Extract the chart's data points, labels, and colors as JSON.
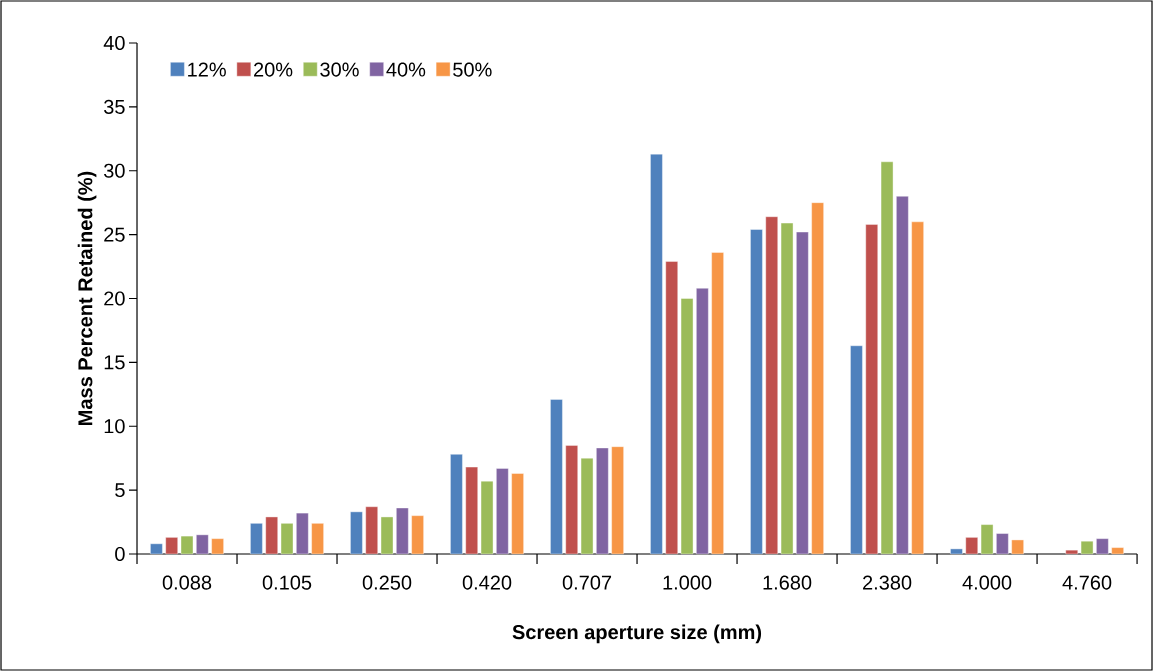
{
  "chart_data": {
    "type": "bar",
    "xlabel": "Screen aperture size (mm)",
    "ylabel": "Mass Percent Retained (%)",
    "categories": [
      "0.088",
      "0.105",
      "0.250",
      "0.420",
      "0.707",
      "1.000",
      "1.680",
      "2.380",
      "4.000",
      "4.760"
    ],
    "series": [
      {
        "name": "12%",
        "color": "#4f81bd",
        "values": [
          0.8,
          2.4,
          3.3,
          7.8,
          12.1,
          31.3,
          25.4,
          16.3,
          0.4,
          null
        ]
      },
      {
        "name": "20%",
        "color": "#c0504d",
        "values": [
          1.3,
          2.9,
          3.7,
          6.8,
          8.5,
          22.9,
          26.4,
          25.8,
          1.3,
          0.3
        ]
      },
      {
        "name": "30%",
        "color": "#9bbb59",
        "values": [
          1.4,
          2.4,
          2.9,
          5.7,
          7.5,
          20.0,
          25.9,
          30.7,
          2.3,
          1.0
        ]
      },
      {
        "name": "40%",
        "color": "#8064a2",
        "values": [
          1.5,
          3.2,
          3.6,
          6.7,
          8.3,
          20.8,
          25.2,
          28.0,
          1.6,
          1.2
        ]
      },
      {
        "name": "50%",
        "color": "#f79646",
        "values": [
          1.2,
          2.4,
          3.0,
          6.3,
          8.4,
          23.6,
          27.5,
          26.0,
          1.1,
          0.5
        ]
      }
    ],
    "ylim": [
      0,
      40
    ],
    "yticks": [
      0,
      5,
      10,
      15,
      20,
      25,
      30,
      35,
      40
    ],
    "legend": "top left"
  }
}
